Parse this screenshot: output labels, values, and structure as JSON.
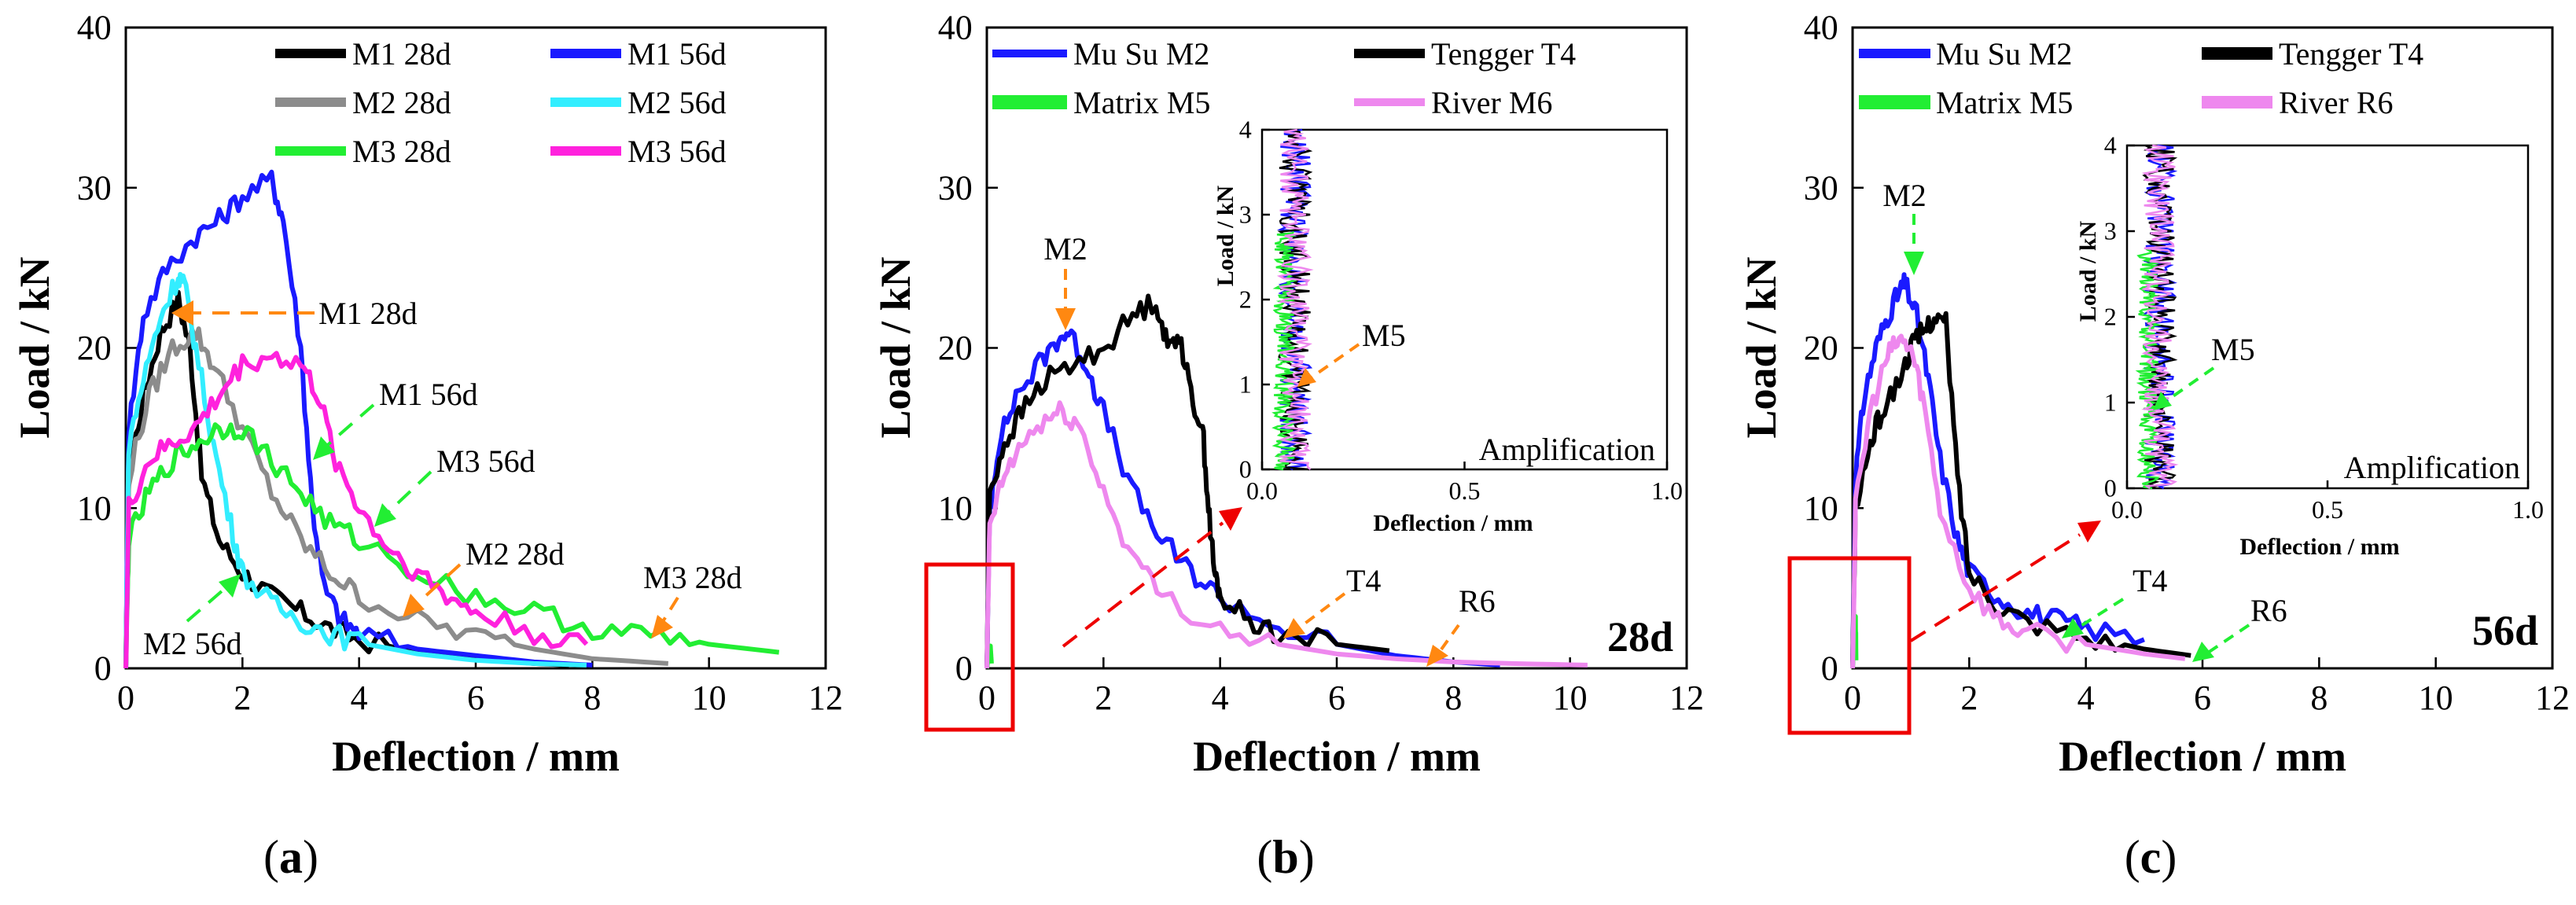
{
  "colors": {
    "black": "#000000",
    "blue": "#1a1aff",
    "gray": "#8c8c8c",
    "cyan": "#33eeff",
    "green": "#22ee33",
    "magenta": "#ff22dd",
    "violet": "#ee88ee",
    "orange": "#ff8811",
    "red": "#ee0000"
  },
  "chart_data": [
    {
      "id": "a",
      "type": "line",
      "caption": "(a)",
      "xlabel": "Deflection / mm",
      "ylabel": "Load / kN",
      "xlim": [
        0,
        12
      ],
      "ylim": [
        0,
        40
      ],
      "xticks": [
        "0",
        "2",
        "4",
        "6",
        "8",
        "10",
        "12"
      ],
      "yticks": [
        "0",
        "10",
        "20",
        "30",
        "40"
      ],
      "series": [
        {
          "name": "M1 28d",
          "color": "black",
          "x": [
            0,
            0.05,
            0.3,
            0.6,
            0.9,
            1.1,
            1.3,
            1.6,
            2.0,
            2.5,
            3.0,
            3.5,
            4.0,
            5.0,
            6.0,
            7.0,
            7.6
          ],
          "y": [
            0,
            12,
            17,
            21,
            23,
            20,
            12,
            8,
            6,
            4.5,
            3.5,
            2.5,
            1.8,
            1.0,
            0.6,
            0.3,
            0.2
          ]
        },
        {
          "name": "M1 56d",
          "color": "blue",
          "x": [
            0,
            0.05,
            0.3,
            0.7,
            1.2,
            1.6,
            2.0,
            2.5,
            2.7,
            3.0,
            3.2,
            3.4,
            3.7,
            4.0,
            5.0,
            6.0,
            7.0,
            8.0
          ],
          "y": [
            0,
            15,
            22,
            25,
            27,
            28,
            29.5,
            30.5,
            28,
            20,
            10,
            5,
            3,
            2.2,
            1.2,
            0.8,
            0.4,
            0.2
          ]
        },
        {
          "name": "M2 28d",
          "color": "gray",
          "x": [
            0,
            0.05,
            0.4,
            0.8,
            1.2,
            1.5,
            2.0,
            2.5,
            3.0,
            3.5,
            4.0,
            5.0,
            6.0,
            7.0,
            8.0,
            9.3
          ],
          "y": [
            0,
            12,
            17,
            20,
            21,
            19,
            15,
            11,
            8,
            6,
            4.5,
            3,
            2,
            1.2,
            0.6,
            0.3
          ]
        },
        {
          "name": "M2 56d",
          "color": "cyan",
          "x": [
            0,
            0.05,
            0.3,
            0.6,
            0.9,
            1.0,
            1.2,
            1.5,
            1.8,
            2.0,
            2.5,
            3.0,
            3.5,
            4.0,
            5.0,
            6.0,
            7.0,
            7.9
          ],
          "y": [
            0,
            14,
            18,
            22,
            24.5,
            24,
            20,
            14,
            9,
            6,
            4,
            3,
            2.2,
            1.6,
            0.9,
            0.5,
            0.3,
            0.2
          ]
        },
        {
          "name": "M3 28d",
          "color": "green",
          "x": [
            0,
            0.05,
            0.4,
            0.8,
            1.2,
            1.6,
            2.0,
            2.5,
            3.0,
            3.5,
            4.0,
            5.0,
            6.0,
            7.0,
            8.0,
            9.0,
            10.0,
            11.2
          ],
          "y": [
            0,
            8,
            11,
            13,
            14,
            15,
            15,
            13,
            11,
            9,
            8,
            6,
            4.5,
            3.5,
            2.5,
            2,
            1.5,
            1
          ]
        },
        {
          "name": "M3 56d",
          "color": "magenta",
          "x": [
            0,
            0.05,
            0.4,
            0.8,
            1.2,
            1.6,
            2.0,
            2.5,
            3.0,
            3.3,
            3.6,
            4.0,
            4.5,
            5.0,
            5.5,
            6.0,
            7.0,
            7.9
          ],
          "y": [
            0,
            10,
            13,
            14,
            15,
            17,
            19,
            19.5,
            19,
            17,
            13,
            10,
            7.5,
            6,
            4.5,
            3.5,
            2.2,
            1.5
          ]
        }
      ],
      "annotations": [
        "M1 28d",
        "M1 56d",
        "M3 56d",
        "M2 28d",
        "M3 28d",
        "M2 56d"
      ]
    },
    {
      "id": "b",
      "type": "line",
      "caption": "(b)",
      "xlabel": "Deflection / mm",
      "ylabel": "Load / kN",
      "xlim": [
        0,
        12
      ],
      "ylim": [
        0,
        40
      ],
      "xticks": [
        "0",
        "2",
        "4",
        "6",
        "8",
        "10",
        "12"
      ],
      "yticks": [
        "0",
        "10",
        "20",
        "30",
        "40"
      ],
      "age_label": "28d",
      "series": [
        {
          "name": "Mu Su M2",
          "color": "blue",
          "x": [
            0,
            0.05,
            0.2,
            0.5,
            0.9,
            1.2,
            1.4,
            1.7,
            2.0,
            2.5,
            3.0,
            3.5,
            4.0,
            5.0,
            6.0,
            7.0,
            8.0,
            8.8
          ],
          "y": [
            0,
            10,
            14,
            17,
            19,
            20.5,
            21,
            19,
            16,
            11,
            8,
            6,
            4.5,
            2.5,
            1.5,
            0.8,
            0.4,
            0.2
          ]
        },
        {
          "name": "Tengger T4",
          "color": "black",
          "x": [
            0,
            0.05,
            0.3,
            0.6,
            1.0,
            1.5,
            2.0,
            2.5,
            2.9,
            3.1,
            3.3,
            3.5,
            3.7,
            3.8,
            3.9,
            4.0,
            4.5,
            5.0,
            6.0,
            6.9
          ],
          "y": [
            0,
            11,
            14,
            16,
            18,
            19,
            20,
            22,
            23,
            20,
            21,
            17,
            15,
            10,
            6,
            4.5,
            3,
            2.2,
            1.5,
            1.1
          ]
        },
        {
          "name": "Matrix M5",
          "color": "green",
          "x": [
            0,
            0.02,
            0.04,
            0.06,
            0.08
          ],
          "y": [
            0,
            0.5,
            1.0,
            1.4,
            0.3
          ]
        },
        {
          "name": "River M6",
          "color": "violet",
          "x": [
            0,
            0.05,
            0.3,
            0.6,
            1.0,
            1.3,
            1.6,
            2.0,
            2.5,
            3.0,
            4.0,
            5.0,
            6.0,
            7.0,
            8.0,
            9.0,
            10.3
          ],
          "y": [
            0,
            9,
            12,
            14,
            15.5,
            16,
            15,
            11,
            7,
            4.5,
            2.5,
            1.5,
            0.9,
            0.6,
            0.4,
            0.3,
            0.2
          ]
        }
      ],
      "inset": {
        "title": "Amplification",
        "xlabel": "Deflection / mm",
        "ylabel": "Load / kN",
        "xlim": [
          0,
          1.0
        ],
        "ylim": [
          0,
          4
        ],
        "xticks": [
          "0.0",
          "0.5",
          "1.0"
        ],
        "yticks": [
          "0",
          "1",
          "2",
          "3",
          "4"
        ],
        "annotation": "M5"
      },
      "annotations": [
        "M2",
        "T4",
        "R6",
        "M5"
      ]
    },
    {
      "id": "c",
      "type": "line",
      "caption": "(c)",
      "xlabel": "Deflection / mm",
      "ylabel": "Load / kN",
      "xlim": [
        0,
        12
      ],
      "ylim": [
        0,
        40
      ],
      "xticks": [
        "0",
        "2",
        "4",
        "6",
        "8",
        "10",
        "12"
      ],
      "yticks": [
        "0",
        "10",
        "20",
        "30",
        "40"
      ],
      "age_label": "56d",
      "series": [
        {
          "name": "Mu Su M2",
          "color": "blue",
          "x": [
            0,
            0.05,
            0.2,
            0.4,
            0.6,
            0.8,
            0.9,
            1.1,
            1.3,
            1.5,
            1.8,
            2.0,
            2.5,
            3.0,
            3.5,
            4.0,
            5.0
          ],
          "y": [
            0,
            12,
            17,
            20,
            22,
            23.5,
            24,
            22,
            18,
            13,
            8,
            6,
            4.5,
            3.5,
            3,
            2.5,
            1.8
          ]
        },
        {
          "name": "Tengger T4",
          "color": "black",
          "x": [
            0,
            0.05,
            0.3,
            0.5,
            0.8,
            1.0,
            1.2,
            1.4,
            1.6,
            1.8,
            2.0,
            2.5,
            3.0,
            4.0,
            5.0,
            5.8
          ],
          "y": [
            0,
            10,
            14,
            16,
            18,
            20,
            21,
            22,
            21.5,
            12,
            6,
            4,
            3,
            2,
            1.2,
            0.8
          ]
        },
        {
          "name": "Matrix M5",
          "color": "green",
          "x": [
            0,
            0.01,
            0.02,
            0.03,
            0.04,
            0.05,
            0.06
          ],
          "y": [
            0,
            0.8,
            1.5,
            2.0,
            2.5,
            2.8,
            0.5
          ]
        },
        {
          "name": "River R6",
          "color": "violet",
          "x": [
            0,
            0.05,
            0.3,
            0.6,
            0.8,
            1.0,
            1.2,
            1.5,
            2.0,
            2.5,
            3.0,
            4.0,
            5.0,
            5.7
          ],
          "y": [
            0,
            10,
            16,
            19.5,
            20.5,
            20,
            17,
            10,
            5,
            3,
            2.2,
            1.5,
            0.9,
            0.6
          ]
        }
      ],
      "inset": {
        "title": "Amplification",
        "xlabel": "Deflection / mm",
        "ylabel": "Load / kN",
        "xlim": [
          0,
          1.0
        ],
        "ylim": [
          0,
          4
        ],
        "xticks": [
          "0.0",
          "0.5",
          "1.0"
        ],
        "yticks": [
          "0",
          "1",
          "2",
          "3",
          "4"
        ],
        "annotation": "M5"
      },
      "annotations": [
        "M2",
        "T4",
        "R6",
        "M5"
      ]
    }
  ]
}
